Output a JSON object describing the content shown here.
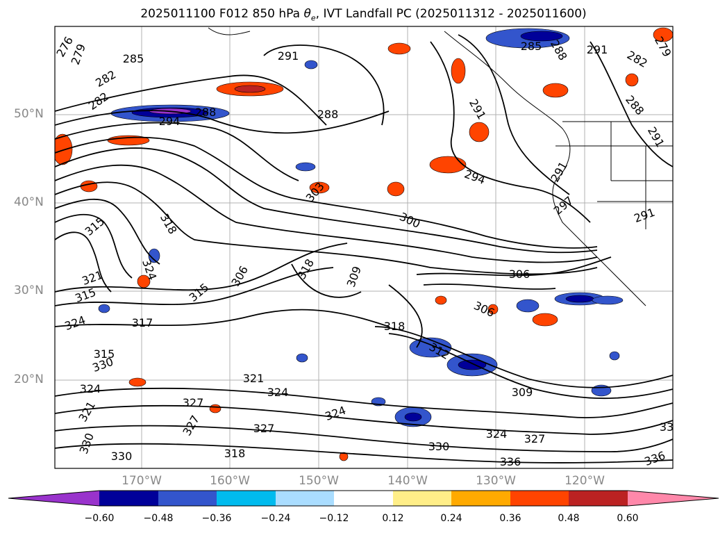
{
  "title": {
    "prefix": "2025011100 F012 850 hPa ",
    "theta": "θ",
    "theta_sub": "e",
    "suffix": ", IVT Landfall PC (2025011312 - 2025011600)"
  },
  "map": {
    "lat_labels": [
      "50°N",
      "40°N",
      "30°N",
      "20°N"
    ],
    "lon_labels": [
      "170°W",
      "160°W",
      "150°W",
      "140°W",
      "130°W",
      "120°W"
    ],
    "gridlines": true
  },
  "colorbar": {
    "tick_labels": [
      "−0.60",
      "−0.48",
      "−0.36",
      "−0.24",
      "−0.12",
      "0.12",
      "0.24",
      "0.36",
      "0.48",
      "0.60"
    ],
    "colors": [
      "#9933cc",
      "#000099",
      "#3355cc",
      "#00bbee",
      "#aaddff",
      "#ffffff",
      "#ffee88",
      "#ffaa00",
      "#ff4400",
      "#bb2222",
      "#ff88aa"
    ]
  },
  "contour_labels": [
    {
      "text": "276"
    },
    {
      "text": "279"
    },
    {
      "text": "282"
    },
    {
      "text": "282"
    },
    {
      "text": "285"
    },
    {
      "text": "288"
    },
    {
      "text": "288"
    },
    {
      "text": "291"
    },
    {
      "text": "294"
    },
    {
      "text": "294"
    },
    {
      "text": "291"
    },
    {
      "text": "285"
    },
    {
      "text": "288"
    },
    {
      "text": "291"
    },
    {
      "text": "282"
    },
    {
      "text": "279"
    },
    {
      "text": "288"
    },
    {
      "text": "291"
    },
    {
      "text": "291"
    },
    {
      "text": "297"
    },
    {
      "text": "291"
    },
    {
      "text": "300"
    },
    {
      "text": "303"
    },
    {
      "text": "315"
    },
    {
      "text": "318"
    },
    {
      "text": "321"
    },
    {
      "text": "324"
    },
    {
      "text": "318"
    },
    {
      "text": "315"
    },
    {
      "text": "309"
    },
    {
      "text": "306"
    },
    {
      "text": "306"
    },
    {
      "text": "306"
    },
    {
      "text": "318"
    },
    {
      "text": "312"
    },
    {
      "text": "309"
    },
    {
      "text": "315"
    },
    {
      "text": "317"
    },
    {
      "text": "324"
    },
    {
      "text": "315"
    },
    {
      "text": "330"
    },
    {
      "text": "324"
    },
    {
      "text": "321"
    },
    {
      "text": "324"
    },
    {
      "text": "327"
    },
    {
      "text": "321"
    },
    {
      "text": "327"
    },
    {
      "text": "330"
    },
    {
      "text": "324"
    },
    {
      "text": "327"
    },
    {
      "text": "318"
    },
    {
      "text": "330"
    },
    {
      "text": "330"
    },
    {
      "text": "324"
    },
    {
      "text": "327"
    },
    {
      "text": "336"
    },
    {
      "text": "336"
    },
    {
      "text": "33"
    }
  ]
}
